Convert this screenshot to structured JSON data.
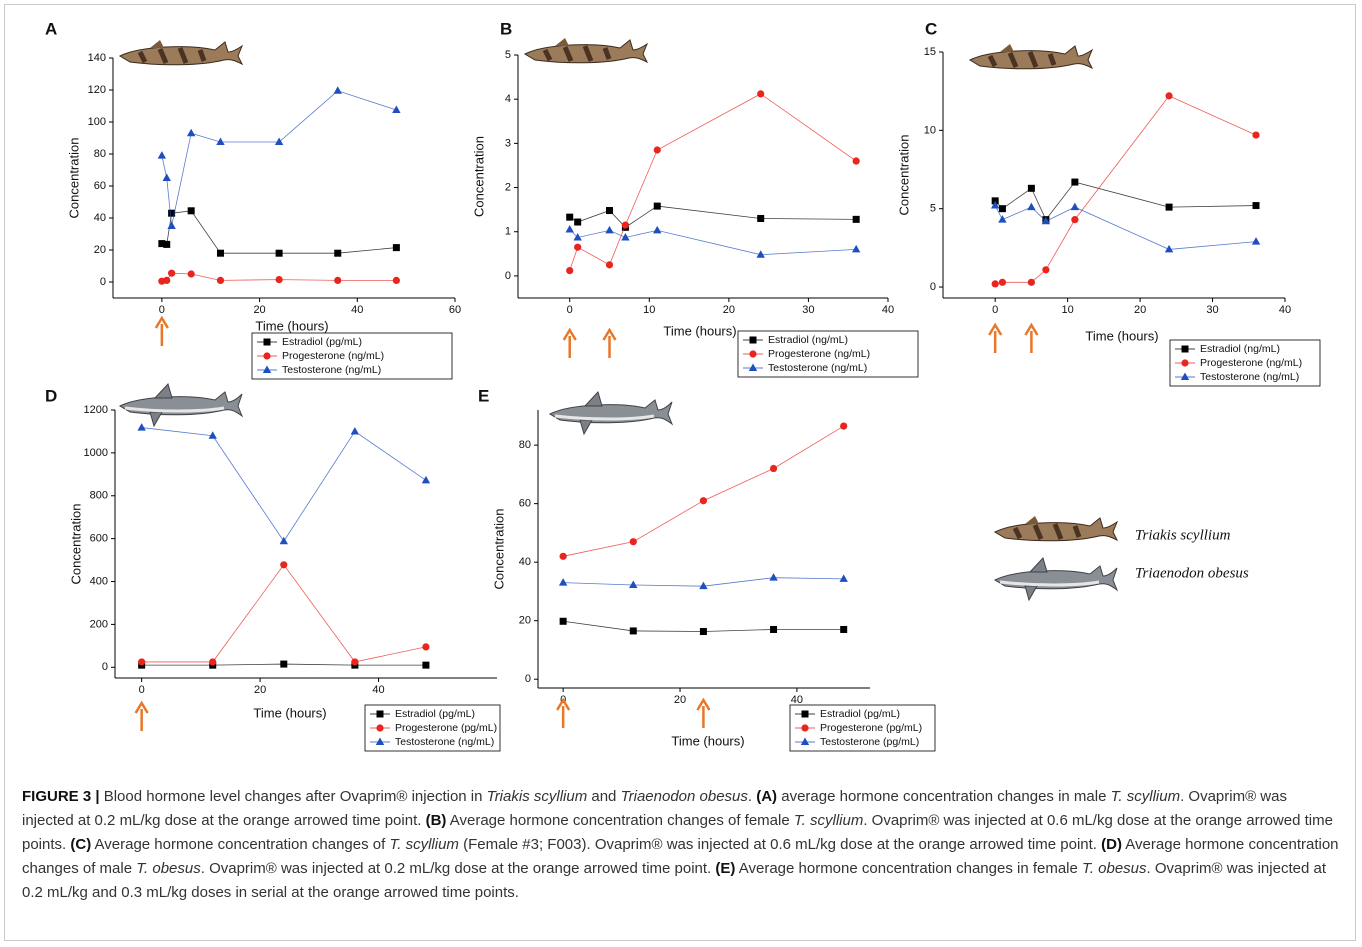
{
  "chart_data": [
    {
      "type": "line",
      "label": "A",
      "xlabel": "Time (hours)",
      "ylabel": "Concentration",
      "xlim": [
        -10,
        60
      ],
      "ylim": [
        -10,
        140
      ],
      "xticks": [
        0,
        20,
        40,
        60
      ],
      "yticks": [
        0,
        20,
        40,
        60,
        80,
        100,
        120,
        140
      ],
      "injections": [
        0
      ],
      "injection_color": "#e8772a",
      "x": [
        0,
        1,
        2,
        6,
        12,
        24,
        36,
        48
      ],
      "series": [
        {
          "name": "Estradiol (pg/mL)",
          "color": "#000000",
          "marker": "square",
          "values": [
            24,
            23.5,
            43,
            44.5,
            18,
            18,
            18,
            21.5
          ]
        },
        {
          "name": "Progesterone (ng/mL)",
          "color": "#e8251f",
          "marker": "circle",
          "values": [
            0.5,
            1,
            5.5,
            5,
            1,
            1.5,
            1,
            1
          ]
        },
        {
          "name": "Testosterone (ng/mL)",
          "color": "#1f4fbf",
          "marker": "triangle",
          "values": [
            79,
            65,
            35,
            93,
            87.5,
            87.5,
            119.5,
            107.5
          ]
        }
      ]
    },
    {
      "type": "line",
      "label": "B",
      "xlabel": "Time (hours)",
      "ylabel": "Concentration",
      "xlim": [
        -6.5,
        40
      ],
      "ylim": [
        -0.5,
        5
      ],
      "xticks": [
        0,
        10,
        20,
        30,
        40
      ],
      "yticks": [
        0,
        1,
        2,
        3,
        4,
        5
      ],
      "injections": [
        0,
        5
      ],
      "injection_color": "#e8772a",
      "x": [
        0,
        1,
        5,
        7,
        11,
        24,
        36
      ],
      "series": [
        {
          "name": "Estradiol (ng/mL)",
          "color": "#000000",
          "marker": "square",
          "values": [
            1.33,
            1.22,
            1.48,
            1.1,
            1.58,
            1.3,
            1.28
          ]
        },
        {
          "name": "Progesterone (ng/mL)",
          "color": "#e8251f",
          "marker": "circle",
          "values": [
            0.12,
            0.65,
            0.25,
            1.15,
            2.85,
            4.12,
            2.6
          ]
        },
        {
          "name": "Testosterone (ng/mL)",
          "color": "#1f4fbf",
          "marker": "triangle",
          "values": [
            1.05,
            0.87,
            1.03,
            0.87,
            1.03,
            0.48,
            0.6
          ]
        }
      ]
    },
    {
      "type": "line",
      "label": "C",
      "xlabel": "Time (hours)",
      "ylabel": "Concentration",
      "xlim": [
        -7.2,
        40
      ],
      "ylim": [
        -0.7,
        15
      ],
      "xticks": [
        0,
        10,
        20,
        30,
        40
      ],
      "yticks": [
        0,
        5,
        10,
        15
      ],
      "injections": [
        0,
        5
      ],
      "injection_color": "#e8772a",
      "x": [
        0,
        1,
        5,
        7,
        11,
        24,
        36
      ],
      "series": [
        {
          "name": "Estradiol (ng/mL)",
          "color": "#000000",
          "marker": "square",
          "values": [
            5.5,
            5.0,
            6.3,
            4.3,
            6.7,
            5.1,
            5.2
          ]
        },
        {
          "name": "Progesterone (ng/mL)",
          "color": "#e8251f",
          "marker": "circle",
          "values": [
            0.2,
            0.3,
            0.3,
            1.1,
            4.3,
            12.2,
            9.7
          ]
        },
        {
          "name": "Testosterone (ng/mL)",
          "color": "#1f4fbf",
          "marker": "triangle",
          "values": [
            5.2,
            4.3,
            5.1,
            4.2,
            5.1,
            2.4,
            2.9
          ]
        }
      ]
    },
    {
      "type": "line",
      "label": "D",
      "xlabel": "Time (hours)",
      "ylabel": "Concentration",
      "xlim": [
        -4.5,
        60
      ],
      "ylim": [
        -50,
        1200
      ],
      "xticks": [
        0,
        20,
        40
      ],
      "yticks": [
        0,
        200,
        400,
        600,
        800,
        1000,
        1200
      ],
      "injections": [
        0
      ],
      "injection_color": "#e8772a",
      "x": [
        0,
        12,
        24,
        36,
        48
      ],
      "series": [
        {
          "name": "Estradiol (pg/mL)",
          "color": "#000000",
          "marker": "square",
          "values": [
            10,
            10,
            15,
            10,
            10
          ]
        },
        {
          "name": "Progesterone (pg/mL)",
          "color": "#e8251f",
          "marker": "circle",
          "values": [
            25,
            25,
            478,
            25,
            95
          ]
        },
        {
          "name": "Testosterone (ng/mL)",
          "color": "#1f4fbf",
          "marker": "triangle",
          "values": [
            1118,
            1080,
            588,
            1100,
            872
          ]
        }
      ]
    },
    {
      "type": "line",
      "label": "E",
      "xlabel": "Time (hours)",
      "ylabel": "Concentration",
      "xlim": [
        -4.3,
        52.5
      ],
      "ylim": [
        -3,
        92
      ],
      "xticks": [
        0,
        20,
        40
      ],
      "yticks": [
        0,
        20,
        40,
        60,
        80
      ],
      "injections": [
        0,
        24
      ],
      "injection_color": "#e8772a",
      "x": [
        0,
        12,
        24,
        36,
        48
      ],
      "series": [
        {
          "name": "Estradiol (pg/mL)",
          "color": "#000000",
          "marker": "square",
          "values": [
            19.8,
            16.5,
            16.3,
            17,
            17
          ]
        },
        {
          "name": "Progesterone (pg/mL)",
          "color": "#e8251f",
          "marker": "circle",
          "values": [
            42,
            47,
            61,
            72,
            86.5
          ]
        },
        {
          "name": "Testosterone (pg/mL)",
          "color": "#1f4fbf",
          "marker": "triangle",
          "values": [
            33,
            32.2,
            31.8,
            34.7,
            34.3
          ]
        }
      ]
    }
  ],
  "species_legend": [
    "Triakis scyllium",
    "Triaenodon obesus"
  ],
  "caption": [
    {
      "text": "FIGURE 3 |",
      "bold": true
    },
    {
      "text": " Blood hormone level changes after Ovaprim® injection in "
    },
    {
      "text": "Triakis scyllium",
      "italic": true
    },
    {
      "text": " and "
    },
    {
      "text": "Triaenodon obesus",
      "italic": true
    },
    {
      "text": ". "
    },
    {
      "text": "(A)",
      "bold": true
    },
    {
      "text": " average hormone concentration changes in male "
    },
    {
      "text": "T. scyllium",
      "italic": true
    },
    {
      "text": ". Ovaprim® was injected at 0.2 mL/kg dose at the orange arrowed time point. "
    },
    {
      "text": "(B)",
      "bold": true
    },
    {
      "text": " Average hormone concentration changes of female "
    },
    {
      "text": "T. scyllium",
      "italic": true
    },
    {
      "text": ". Ovaprim® was injected at 0.6 mL/kg dose at the orange arrowed time points. "
    },
    {
      "text": "(C)",
      "bold": true
    },
    {
      "text": " Average hormone concentration changes of "
    },
    {
      "text": "T. scyllium",
      "italic": true
    },
    {
      "text": " (Female #3; F003). Ovaprim® was injected at 0.6 mL/kg dose at the orange arrowed time point. "
    },
    {
      "text": "(D)",
      "bold": true
    },
    {
      "text": " Average hormone concentration changes of male "
    },
    {
      "text": "T. obesus",
      "italic": true
    },
    {
      "text": ". Ovaprim® was injected at 0.2 mL/kg dose at the orange arrowed time point. "
    },
    {
      "text": "(E)",
      "bold": true
    },
    {
      "text": " Average hormone concentration changes in female "
    },
    {
      "text": "T. obesus",
      "italic": true
    },
    {
      "text": ". Ovaprim® was injected at 0.2 mL/kg and 0.3 mL/kg doses in serial at the orange arrowed time points."
    }
  ]
}
